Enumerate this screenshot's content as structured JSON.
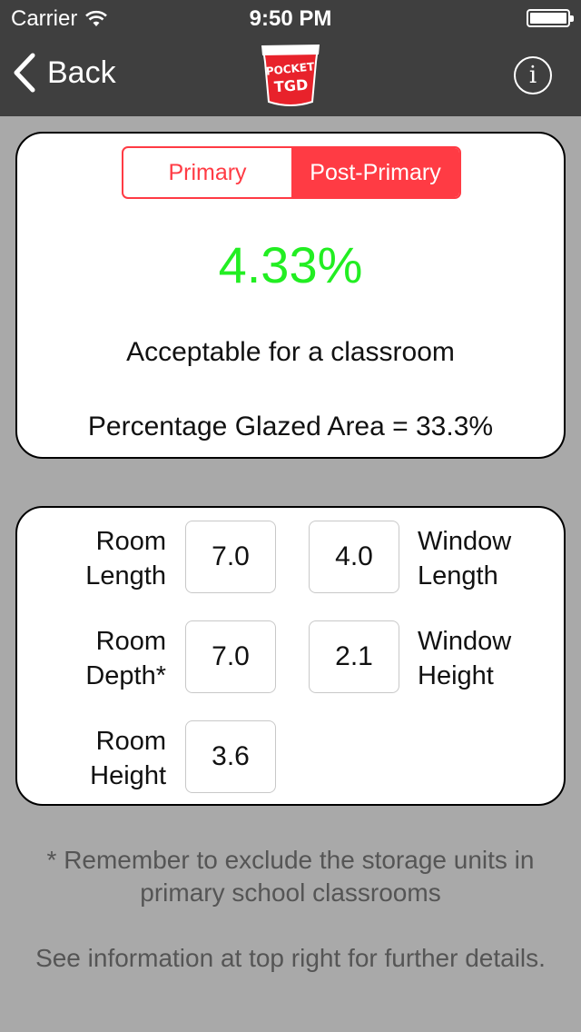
{
  "status_bar": {
    "carrier": "Carrier",
    "time": "9:50 PM"
  },
  "nav": {
    "back_label": "Back",
    "logo_text_top": "POCKET",
    "logo_text_bottom": "TGD",
    "info_glyph": "i"
  },
  "segment": {
    "options": [
      "Primary",
      "Post-Primary"
    ],
    "selected": "Post-Primary"
  },
  "result": {
    "percentage": "4.33%",
    "verdict": "Acceptable for a classroom",
    "glazed_area": "Percentage Glazed Area = 33.3%"
  },
  "inputs": {
    "room_length": {
      "label_line1": "Room",
      "label_line2": "Length",
      "value": "7.0"
    },
    "room_depth": {
      "label_line1": "Room",
      "label_line2": "Depth*",
      "value": "7.0"
    },
    "room_height": {
      "label_line1": "Room",
      "label_line2": "Height",
      "value": "3.6"
    },
    "window_length": {
      "label_line1": "Window",
      "label_line2": "Length",
      "value": "4.0"
    },
    "window_height": {
      "label_line1": "Window",
      "label_line2": "Height",
      "value": "2.1"
    }
  },
  "notes": {
    "storage": "* Remember to exclude the storage units in primary school classrooms",
    "info": "See information at top right for further details."
  },
  "colors": {
    "accent": "#ff3b44",
    "result": "#22ee22",
    "nav_bg": "#3f3f3f",
    "page_bg": "#a9a9a9"
  }
}
